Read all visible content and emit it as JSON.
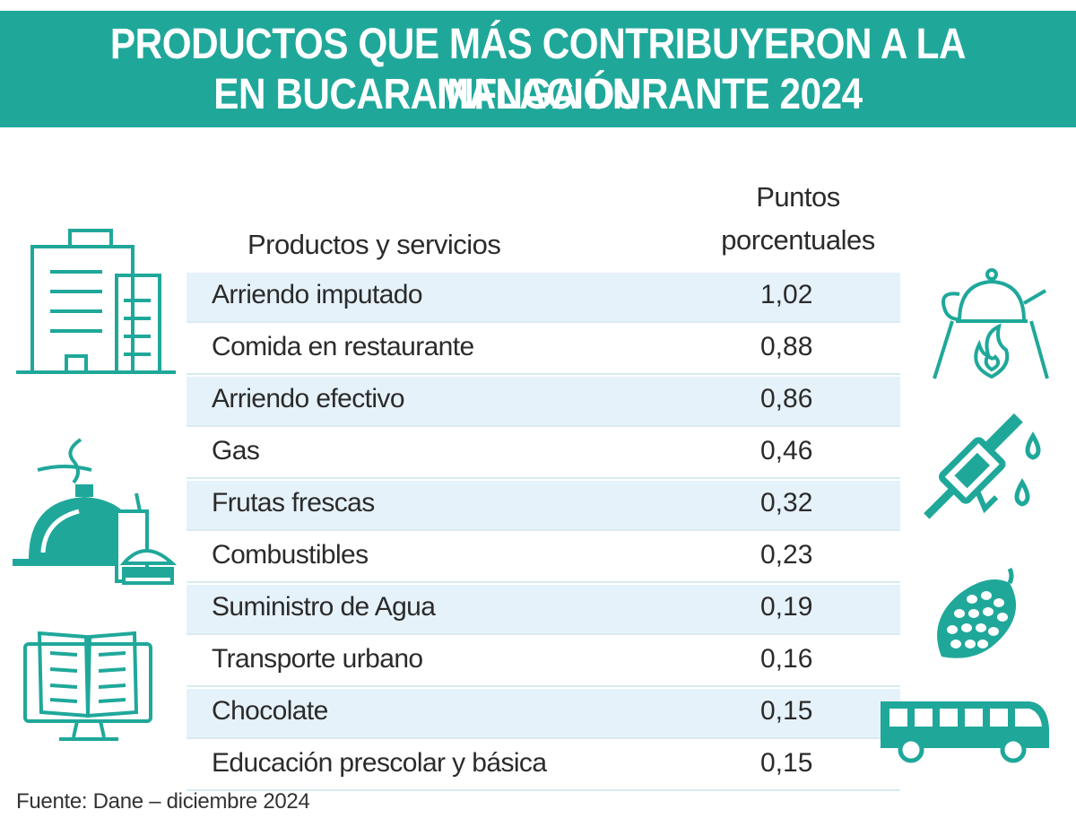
{
  "title": {
    "line1": "PRODUCTOS QUE MÁS CONTRIBUYERON A LA INFLACIÓN",
    "line2": "EN BUCARAMANGA DURANTE 2024"
  },
  "colors": {
    "accent": "#1fa89a",
    "row_stripe": "#e6f2fa"
  },
  "icons": [
    "buildings-icon",
    "food-tray-icon",
    "book-monitor-icon",
    "teapot-fire-icon",
    "fuel-nozzle-icon",
    "fruit-icon",
    "bus-icon"
  ],
  "chart_data": {
    "type": "table",
    "columns": [
      "Productos y servicios",
      "Puntos porcentuales"
    ],
    "header_right_line1": "Puntos",
    "header_right_line2": "porcentuales",
    "rows": [
      {
        "label": "Arriendo imputado",
        "value": "1,02"
      },
      {
        "label": "Comida en restaurante",
        "value": "0,88"
      },
      {
        "label": "Arriendo efectivo",
        "value": "0,86"
      },
      {
        "label": "Gas",
        "value": "0,46"
      },
      {
        "label": "Frutas frescas",
        "value": "0,32"
      },
      {
        "label": "Combustibles",
        "value": "0,23"
      },
      {
        "label": "Suministro de Agua",
        "value": "0,19"
      },
      {
        "label": "Transporte urbano",
        "value": "0,16"
      },
      {
        "label": "Chocolate",
        "value": "0,15"
      },
      {
        "label": "Educación prescolar y básica",
        "value": "0,15"
      }
    ]
  },
  "source": "Fuente: Dane – diciembre 2024"
}
